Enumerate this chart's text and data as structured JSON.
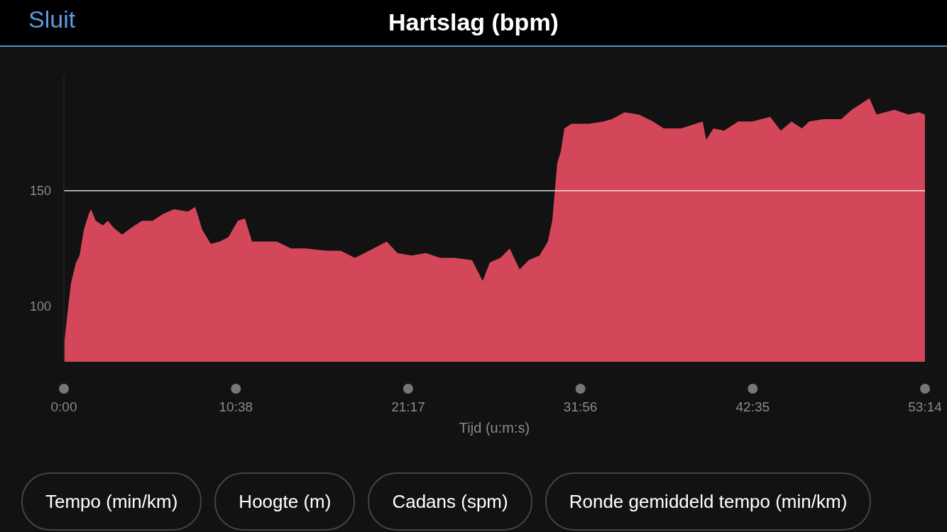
{
  "chart_data": {
    "type": "area",
    "title": "Hartslag (bpm)",
    "xlabel": "Tijd (u:m:s)",
    "annotations": [
      "Sluit",
      "Tempo (min/km)",
      "Hoogte (m)",
      "Cadans (spm)",
      "Ronde gemiddeld tempo (min/km)"
    ],
    "x": [
      0.04,
      0.22,
      0.44,
      0.75,
      0.97,
      1.23,
      1.54,
      1.67,
      1.97,
      2.41,
      2.72,
      3.07,
      3.6,
      4.17,
      4.83,
      5.48,
      6.14,
      6.8,
      7.68,
      8.12,
      8.56,
      9.08,
      9.65,
      10.18,
      10.75,
      11.19,
      11.63,
      12.29,
      13.16,
      14.04,
      14.92,
      16.24,
      17.11,
      17.99,
      18.87,
      19.96,
      20.62,
      21.5,
      22.38,
      23.26,
      24.13,
      25.23,
      25.89,
      26.33,
      26.99,
      27.56,
      28.17,
      28.74,
      29.4,
      29.92,
      30.19,
      30.5,
      30.72,
      30.94,
      31.38,
      32.48,
      33.36,
      33.88,
      34.67,
      35.54,
      36.42,
      37.08,
      38.17,
      39.49,
      39.71,
      40.15,
      40.81,
      41.69,
      42.56,
      43.66,
      44.32,
      44.98,
      45.63,
      46.07,
      46.95,
      48.05,
      48.71,
      49.36,
      49.8,
      50.24,
      51.34,
      52.22,
      52.87,
      53.23
    ],
    "series": [
      {
        "color": "#d4475a",
        "values": [
          85,
          97,
          110,
          119,
          122,
          133,
          140,
          142,
          137,
          135,
          137,
          134,
          131,
          134,
          137,
          137,
          140,
          142,
          141,
          143,
          133,
          127,
          128,
          130,
          137,
          138,
          128,
          128,
          128,
          125,
          125,
          124,
          124,
          121,
          124,
          128,
          123,
          122,
          123,
          121,
          121,
          120,
          111,
          119,
          121,
          125,
          116,
          120,
          122,
          128,
          137,
          162,
          167,
          177,
          179,
          179,
          180,
          181,
          184,
          183,
          180,
          177,
          177,
          180,
          172,
          177,
          176,
          180,
          180,
          182,
          176,
          180,
          177,
          180,
          181,
          181,
          185,
          188,
          190,
          183,
          185,
          183,
          184,
          183
        ]
      }
    ],
    "xlim": [
      0,
      53.233
    ],
    "xticks": [
      {
        "value": 0,
        "label": "0:00"
      },
      {
        "value": 10.633,
        "label": "10:38"
      },
      {
        "value": 21.283,
        "label": "21:17"
      },
      {
        "value": 31.933,
        "label": "31:56"
      },
      {
        "value": 42.583,
        "label": "42:35"
      },
      {
        "value": 53.233,
        "label": "53:14"
      }
    ],
    "ylim": [
      76,
      200
    ],
    "yticks": [
      100,
      150
    ],
    "ref_lines": [
      {
        "axis": "y",
        "value": 150,
        "color": "#ffffff"
      }
    ]
  }
}
